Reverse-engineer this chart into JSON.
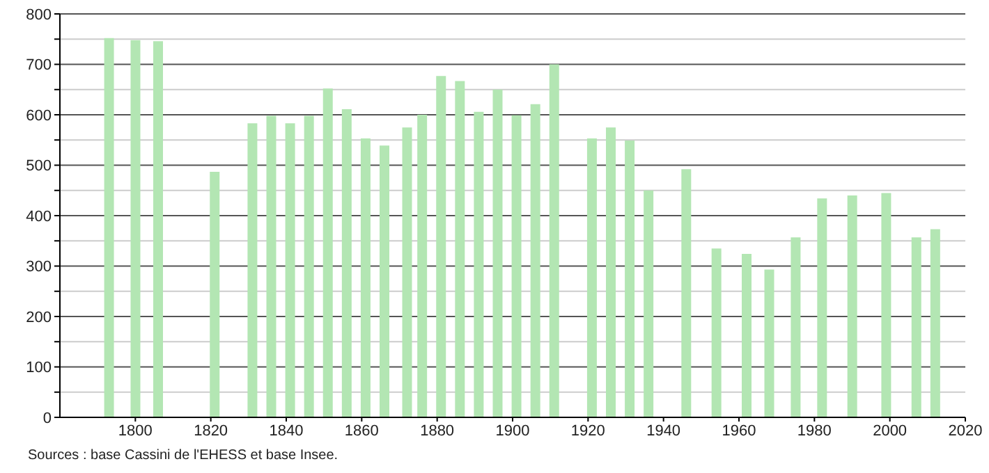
{
  "chart_data": {
    "type": "bar",
    "x": [
      1793,
      1800,
      1806,
      1821,
      1831,
      1836,
      1841,
      1846,
      1851,
      1856,
      1861,
      1866,
      1872,
      1876,
      1881,
      1886,
      1891,
      1896,
      1901,
      1906,
      1911,
      1921,
      1926,
      1931,
      1936,
      1946,
      1954,
      1962,
      1968,
      1975,
      1982,
      1990,
      1999,
      2007,
      2012
    ],
    "values": [
      752,
      748,
      746,
      487,
      583,
      598,
      583,
      598,
      652,
      611,
      553,
      539,
      575,
      600,
      677,
      667,
      606,
      650,
      599,
      621,
      700,
      553,
      575,
      549,
      450,
      492,
      335,
      324,
      293,
      357,
      434,
      440,
      445,
      357,
      373
    ],
    "color": "#b3e6b3",
    "xlim": [
      1780,
      2020
    ],
    "xticks": [
      1800,
      1820,
      1840,
      1860,
      1880,
      1900,
      1920,
      1940,
      1960,
      1980,
      2000,
      2020
    ],
    "ylim": [
      0,
      800
    ],
    "yticks": [
      0,
      {
        "value": 50,
        "label": null
      },
      100,
      {
        "value": 150,
        "label": null
      },
      200,
      {
        "value": 250,
        "label": null
      },
      300,
      {
        "value": 350,
        "label": null
      },
      400,
      {
        "value": 450,
        "label": null
      },
      500,
      {
        "value": 550,
        "label": null
      },
      600,
      {
        "value": 650,
        "label": null
      },
      700,
      {
        "value": 750,
        "label": null
      },
      800
    ],
    "grid": "y",
    "annotations": [
      "Sources : base Cassini de l'EHESS et base Insee."
    ]
  }
}
